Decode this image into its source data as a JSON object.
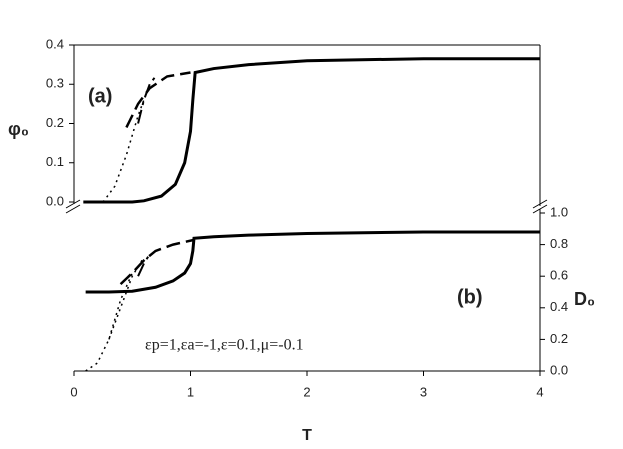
{
  "chart_data": [
    {
      "type": "line",
      "label": "(a)",
      "ylabel": "φ₀",
      "yaxis_side": "left",
      "xlim": [
        0,
        4
      ],
      "ylim": [
        0,
        0.4
      ],
      "yticks": [
        {
          "value": 0,
          "label": "0.0"
        },
        0.1,
        0.2,
        0.3,
        0.4
      ],
      "series": [
        {
          "color": "#000000",
          "dash": "solid",
          "width": 3,
          "x": [
            0.08,
            0.5,
            0.6,
            0.75,
            0.87,
            0.95,
            1.0,
            1.02,
            1.04,
            1.2,
            1.5,
            2,
            3,
            4
          ],
          "values": [
            0,
            0,
            0.003,
            0.015,
            0.045,
            0.1,
            0.18,
            0.26,
            0.33,
            0.34,
            0.35,
            0.36,
            0.365,
            0.365
          ]
        },
        {
          "color": "#000000",
          "dash": "dashed",
          "width": 2.5,
          "x": [
            0.45,
            0.55,
            0.65,
            0.8,
            1.0
          ],
          "values": [
            0.19,
            0.25,
            0.29,
            0.32,
            0.33
          ]
        },
        {
          "color": "#000000",
          "dash": "dashdot",
          "width": 2,
          "x": [
            0.55,
            0.6,
            0.65,
            0.7
          ],
          "values": [
            0.2,
            0.26,
            0.3,
            0.32
          ]
        },
        {
          "color": "#000000",
          "dash": "dotted",
          "width": 1.5,
          "x": [
            0.25,
            0.35,
            0.45,
            0.55,
            0.6
          ],
          "values": [
            0,
            0.04,
            0.12,
            0.22,
            0.26
          ]
        }
      ]
    },
    {
      "type": "line",
      "label": "(b)",
      "ylabel": "D₀",
      "yaxis_side": "right",
      "xlabel": "T",
      "annotation": "εp=1,εa=-1,ε=0.1,μ=-0.1",
      "xlim": [
        0,
        4
      ],
      "xticks": [
        0,
        1,
        2,
        3,
        4
      ],
      "ylim": [
        0,
        1.0
      ],
      "yticks": [
        {
          "value": 0,
          "label": "0.0"
        },
        0.2,
        0.4,
        0.6,
        0.8,
        {
          "value": 1,
          "label": "1.0"
        }
      ],
      "series": [
        {
          "color": "#000000",
          "dash": "solid",
          "width": 3,
          "x": [
            0.1,
            0.3,
            0.5,
            0.7,
            0.85,
            0.95,
            1.0,
            1.02,
            1.03,
            1.2,
            1.5,
            2,
            3,
            4
          ],
          "values": [
            0.5,
            0.5,
            0.505,
            0.53,
            0.57,
            0.62,
            0.68,
            0.76,
            0.84,
            0.85,
            0.86,
            0.87,
            0.88,
            0.88
          ]
        },
        {
          "color": "#000000",
          "dash": "dashed",
          "width": 2.5,
          "x": [
            0.4,
            0.5,
            0.6,
            0.7,
            0.85,
            1.03
          ],
          "values": [
            0.55,
            0.62,
            0.7,
            0.76,
            0.8,
            0.83
          ]
        },
        {
          "color": "#000000",
          "dash": "dashdot",
          "width": 2,
          "x": [
            0.55,
            0.6,
            0.65
          ],
          "values": [
            0.6,
            0.68,
            0.74
          ]
        },
        {
          "color": "#000000",
          "dash": "dotted",
          "width": 1.5,
          "x": [
            0.1,
            0.2,
            0.3,
            0.4,
            0.5
          ],
          "values": [
            0,
            0.05,
            0.2,
            0.45,
            0.62
          ]
        },
        {
          "color": "#000000",
          "dash": "dotted",
          "width": 1.5,
          "x": [
            0.3,
            0.4,
            0.5,
            0.6
          ],
          "values": [
            0.2,
            0.4,
            0.6,
            0.72
          ]
        }
      ]
    }
  ]
}
